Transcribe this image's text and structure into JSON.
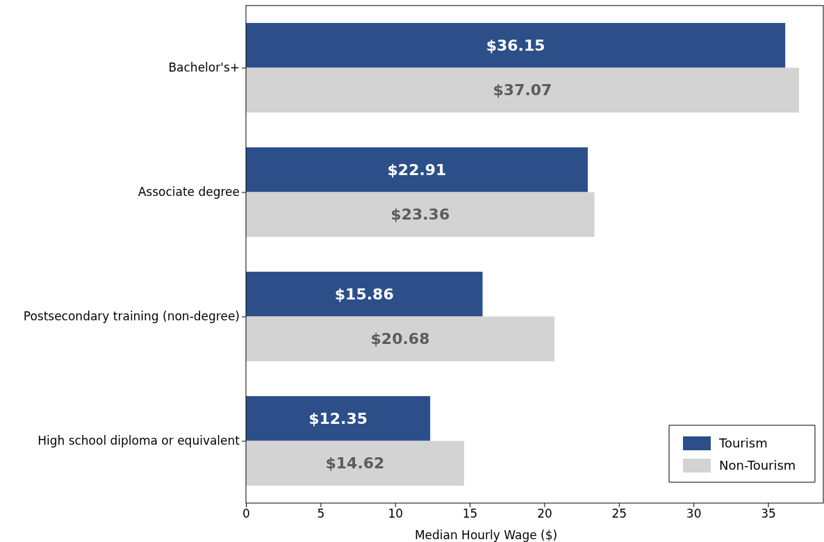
{
  "chart_data": {
    "type": "bar",
    "orientation": "horizontal",
    "xlabel": "Median Hourly Wage ($)",
    "categories": [
      "Bachelor's+",
      "Associate degree",
      "Postsecondary training (non-degree)",
      "High school diploma or equivalent"
    ],
    "series": [
      {
        "name": "Tourism",
        "color": "#2c4f8a",
        "values": [
          36.15,
          22.91,
          15.86,
          12.35
        ],
        "value_labels": [
          "$36.15",
          "$22.91",
          "$15.86",
          "$12.35"
        ]
      },
      {
        "name": "Non-Tourism",
        "color": "#d3d3d3",
        "values": [
          37.07,
          23.36,
          20.68,
          14.62
        ],
        "value_labels": [
          "$37.07",
          "$23.36",
          "$20.68",
          "$14.62"
        ]
      }
    ],
    "xlim": [
      0,
      38.7
    ],
    "xticks": [
      0,
      5,
      10,
      15,
      20,
      25,
      30,
      35
    ],
    "grid": false,
    "legend": "bottom right"
  }
}
